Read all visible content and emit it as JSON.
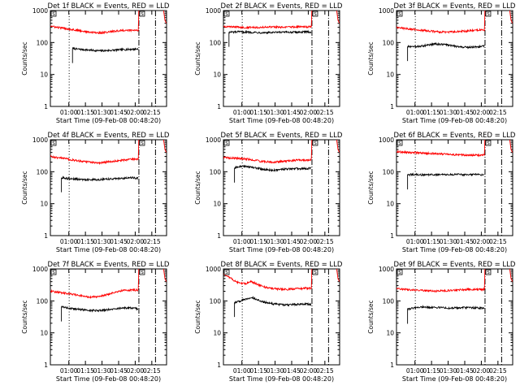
{
  "figure": {
    "start_time_label": "Start Time (09-Feb-08 00:48:20)",
    "yaxis_label": "Counts/sec",
    "colors": {
      "events": "#000000",
      "lld": "#ff0000",
      "axis": "#000000",
      "background": "#ffffff"
    }
  },
  "chart_data": [
    {
      "type": "line",
      "title": "Det 1f BLACK = Events, RED = LLD",
      "panel": "det-1f",
      "xlabel": "Start Time (09-Feb-08 00:48:20)",
      "ylabel": "Counts/sec",
      "x_ticks": [
        "01:00",
        "01:15",
        "01:30",
        "01:45",
        "02:00",
        "02:15"
      ],
      "x_tick_minutes": [
        11.67,
        26.67,
        41.67,
        56.67,
        71.67,
        86.67
      ],
      "x_range_minutes": [
        -5,
        100
      ],
      "yscale": "log",
      "ylim": [
        1,
        1000
      ],
      "y_ticks": [
        "1",
        "10",
        "100",
        "1000"
      ],
      "dotted_marker_minute": 12,
      "dashdot_marker_minutes": [
        75,
        90
      ],
      "flag_label": "S",
      "series": [
        {
          "name": "Events",
          "color": "#000000",
          "x": [
            15,
            20,
            30,
            40,
            50,
            60,
            70,
            74.5
          ],
          "y": [
            65,
            62,
            58,
            55,
            57,
            60,
            62,
            63
          ]
        },
        {
          "name": "LLD",
          "color": "#ff0000",
          "x": [
            -5,
            0,
            10,
            20,
            30,
            40,
            50,
            60,
            70,
            74.5
          ],
          "y": [
            330,
            300,
            270,
            240,
            210,
            200,
            220,
            240,
            240,
            240
          ]
        }
      ]
    },
    {
      "type": "line",
      "title": "Det 2f BLACK = Events, RED = LLD",
      "panel": "det-2f",
      "xlabel": "Start Time (09-Feb-08 00:48:20)",
      "ylabel": "Counts/sec",
      "x_ticks": [
        "01:00",
        "01:15",
        "01:30",
        "01:45",
        "02:00",
        "02:15"
      ],
      "x_tick_minutes": [
        11.67,
        26.67,
        41.67,
        56.67,
        71.67,
        86.67
      ],
      "x_range_minutes": [
        -5,
        100
      ],
      "yscale": "log",
      "ylim": [
        1,
        1000
      ],
      "y_ticks": [
        "1",
        "10",
        "100",
        "1000"
      ],
      "dotted_marker_minute": 12,
      "dashdot_marker_minutes": [
        75,
        90
      ],
      "flag_label": "S",
      "series": [
        {
          "name": "Events",
          "color": "#000000",
          "x": [
            0,
            10,
            20,
            30,
            40,
            50,
            60,
            70,
            74.5
          ],
          "y": [
            210,
            215,
            210,
            205,
            205,
            210,
            210,
            215,
            215
          ]
        },
        {
          "name": "LLD",
          "color": "#ff0000",
          "x": [
            -5,
            0,
            10,
            20,
            30,
            40,
            50,
            60,
            70,
            74.5
          ],
          "y": [
            320,
            310,
            300,
            300,
            300,
            305,
            300,
            310,
            310,
            310
          ]
        }
      ]
    },
    {
      "type": "line",
      "title": "Det 3f BLACK = Events, RED = LLD",
      "panel": "det-3f",
      "xlabel": "Start Time (09-Feb-08 00:48:20)",
      "ylabel": "Counts/sec",
      "x_ticks": [
        "01:00",
        "01:15",
        "01:30",
        "01:45",
        "02:00",
        "02:15"
      ],
      "x_tick_minutes": [
        11.67,
        26.67,
        41.67,
        56.67,
        71.67,
        86.67
      ],
      "x_range_minutes": [
        -5,
        100
      ],
      "yscale": "log",
      "ylim": [
        1,
        1000
      ],
      "y_ticks": [
        "1",
        "10",
        "100",
        "1000"
      ],
      "dotted_marker_minute": 12,
      "dashdot_marker_minutes": [
        75,
        90
      ],
      "flag_label": "S",
      "series": [
        {
          "name": "Events",
          "color": "#000000",
          "x": [
            5,
            10,
            20,
            30,
            40,
            50,
            60,
            70,
            74.5
          ],
          "y": [
            75,
            72,
            80,
            90,
            85,
            75,
            70,
            75,
            80
          ]
        },
        {
          "name": "LLD",
          "color": "#ff0000",
          "x": [
            -5,
            0,
            10,
            20,
            30,
            40,
            50,
            60,
            70,
            74.5
          ],
          "y": [
            300,
            280,
            260,
            240,
            220,
            210,
            220,
            230,
            250,
            250
          ]
        }
      ]
    },
    {
      "type": "line",
      "title": "Det 4f BLACK = Events, RED = LLD",
      "panel": "det-4f",
      "xlabel": "Start Time (09-Feb-08 00:48:20)",
      "ylabel": "Counts/sec",
      "x_ticks": [
        "01:00",
        "01:15",
        "01:30",
        "01:45",
        "02:00",
        "02:15"
      ],
      "x_tick_minutes": [
        11.67,
        26.67,
        41.67,
        56.67,
        71.67,
        86.67
      ],
      "x_range_minutes": [
        -5,
        100
      ],
      "yscale": "log",
      "ylim": [
        1,
        1000
      ],
      "y_ticks": [
        "1",
        "10",
        "100",
        "1000"
      ],
      "dotted_marker_minute": 12,
      "dashdot_marker_minutes": [
        75,
        90
      ],
      "flag_label": "S",
      "series": [
        {
          "name": "Events",
          "color": "#000000",
          "x": [
            5,
            10,
            20,
            30,
            40,
            50,
            60,
            70,
            74.5
          ],
          "y": [
            65,
            62,
            58,
            56,
            57,
            60,
            62,
            65,
            62
          ]
        },
        {
          "name": "LLD",
          "color": "#ff0000",
          "x": [
            -5,
            0,
            10,
            20,
            30,
            40,
            50,
            60,
            70,
            74.5
          ],
          "y": [
            300,
            280,
            250,
            220,
            200,
            190,
            210,
            230,
            250,
            240
          ]
        }
      ]
    },
    {
      "type": "line",
      "title": "Det 5f BLACK = Events, RED = LLD",
      "panel": "det-5f",
      "xlabel": "Start Time (09-Feb-08 00:48:20)",
      "ylabel": "Counts/sec",
      "x_ticks": [
        "01:00",
        "01:15",
        "01:30",
        "01:45",
        "02:00",
        "02:15"
      ],
      "x_tick_minutes": [
        11.67,
        26.67,
        41.67,
        56.67,
        71.67,
        86.67
      ],
      "x_range_minutes": [
        -5,
        100
      ],
      "yscale": "log",
      "ylim": [
        1,
        1000
      ],
      "y_ticks": [
        "1",
        "10",
        "100",
        "1000"
      ],
      "dotted_marker_minute": 12,
      "dashdot_marker_minutes": [
        75,
        90
      ],
      "flag_label": "S",
      "series": [
        {
          "name": "Events",
          "color": "#000000",
          "x": [
            5,
            10,
            20,
            30,
            40,
            50,
            60,
            70,
            74.5
          ],
          "y": [
            130,
            150,
            140,
            120,
            110,
            120,
            125,
            125,
            130
          ]
        },
        {
          "name": "LLD",
          "color": "#ff0000",
          "x": [
            -5,
            0,
            10,
            20,
            30,
            40,
            50,
            60,
            70,
            74.5
          ],
          "y": [
            280,
            270,
            260,
            240,
            210,
            200,
            210,
            230,
            230,
            240
          ]
        }
      ]
    },
    {
      "type": "line",
      "title": "Det 6f BLACK = Events, RED = LLD",
      "panel": "det-6f",
      "xlabel": "Start Time (09-Feb-08 00:48:20)",
      "ylabel": "Counts/sec",
      "x_ticks": [
        "01:00",
        "01:15",
        "01:30",
        "01:45",
        "02:00",
        "02:15"
      ],
      "x_tick_minutes": [
        11.67,
        26.67,
        41.67,
        56.67,
        71.67,
        86.67
      ],
      "x_range_minutes": [
        -5,
        100
      ],
      "yscale": "log",
      "ylim": [
        1,
        1000
      ],
      "y_ticks": [
        "1",
        "10",
        "100",
        "1000"
      ],
      "dotted_marker_minute": 12,
      "dashdot_marker_minutes": [
        75,
        90
      ],
      "flag_label": "S",
      "series": [
        {
          "name": "Events",
          "color": "#000000",
          "x": [
            5,
            10,
            20,
            30,
            40,
            50,
            60,
            70,
            74.5
          ],
          "y": [
            80,
            82,
            80,
            80,
            80,
            82,
            80,
            82,
            80
          ]
        },
        {
          "name": "LLD",
          "color": "#ff0000",
          "x": [
            -5,
            0,
            10,
            20,
            30,
            40,
            50,
            60,
            70,
            74.5
          ],
          "y": [
            430,
            410,
            400,
            380,
            370,
            350,
            340,
            330,
            330,
            340
          ]
        }
      ]
    },
    {
      "type": "line",
      "title": "Det 7f BLACK = Events, RED = LLD",
      "panel": "det-7f",
      "xlabel": "Start Time (09-Feb-08 00:48:20)",
      "ylabel": "Counts/sec",
      "x_ticks": [
        "01:00",
        "01:15",
        "01:30",
        "01:45",
        "02:00",
        "02:15"
      ],
      "x_tick_minutes": [
        11.67,
        26.67,
        41.67,
        56.67,
        71.67,
        86.67
      ],
      "x_range_minutes": [
        -5,
        100
      ],
      "yscale": "log",
      "ylim": [
        1,
        1000
      ],
      "y_ticks": [
        "1",
        "10",
        "100",
        "1000"
      ],
      "dotted_marker_minute": 12,
      "dashdot_marker_minutes": [
        75,
        90
      ],
      "flag_label": "S",
      "series": [
        {
          "name": "Events",
          "color": "#000000",
          "x": [
            5,
            10,
            20,
            30,
            40,
            50,
            60,
            70,
            74.5
          ],
          "y": [
            65,
            60,
            55,
            50,
            50,
            55,
            60,
            60,
            55
          ]
        },
        {
          "name": "LLD",
          "color": "#ff0000",
          "x": [
            -5,
            0,
            10,
            20,
            30,
            40,
            50,
            60,
            70,
            74.5
          ],
          "y": [
            200,
            190,
            170,
            150,
            130,
            140,
            170,
            210,
            220,
            220
          ]
        }
      ]
    },
    {
      "type": "line",
      "title": "Det 8f BLACK = Events, RED = LLD",
      "panel": "det-8f",
      "xlabel": "Start Time (09-Feb-08 00:48:20)",
      "ylabel": "Counts/sec",
      "x_ticks": [
        "01:00",
        "01:15",
        "01:30",
        "01:45",
        "02:00",
        "02:15"
      ],
      "x_tick_minutes": [
        11.67,
        26.67,
        41.67,
        56.67,
        71.67,
        86.67
      ],
      "x_range_minutes": [
        -5,
        100
      ],
      "yscale": "log",
      "ylim": [
        1,
        1000
      ],
      "y_ticks": [
        "1",
        "10",
        "100",
        "1000"
      ],
      "dotted_marker_minute": 12,
      "dashdot_marker_minutes": [
        75,
        90
      ],
      "flag_label": "S",
      "series": [
        {
          "name": "Events",
          "color": "#000000",
          "x": [
            5,
            10,
            15,
            20,
            30,
            40,
            50,
            60,
            70,
            74.5
          ],
          "y": [
            90,
            100,
            110,
            130,
            95,
            80,
            75,
            78,
            80,
            75
          ]
        },
        {
          "name": "LLD",
          "color": "#ff0000",
          "x": [
            -5,
            0,
            5,
            10,
            15,
            20,
            30,
            40,
            50,
            60,
            70,
            74.5
          ],
          "y": [
            700,
            550,
            420,
            360,
            350,
            400,
            280,
            240,
            230,
            240,
            250,
            250
          ]
        }
      ]
    },
    {
      "type": "line",
      "title": "Det 9f BLACK = Events, RED = LLD",
      "panel": "det-9f",
      "xlabel": "Start Time (09-Feb-08 00:48:20)",
      "ylabel": "Counts/sec",
      "x_ticks": [
        "01:00",
        "01:15",
        "01:30",
        "01:45",
        "02:00",
        "02:15"
      ],
      "x_tick_minutes": [
        11.67,
        26.67,
        41.67,
        56.67,
        71.67,
        86.67
      ],
      "x_range_minutes": [
        -5,
        100
      ],
      "yscale": "log",
      "ylim": [
        1,
        1000
      ],
      "y_ticks": [
        "1",
        "10",
        "100",
        "1000"
      ],
      "dotted_marker_minute": 12,
      "dashdot_marker_minutes": [
        75,
        90
      ],
      "flag_label": "S",
      "series": [
        {
          "name": "Events",
          "color": "#000000",
          "x": [
            5,
            10,
            20,
            30,
            40,
            50,
            60,
            70,
            74.5
          ],
          "y": [
            55,
            60,
            65,
            62,
            60,
            60,
            62,
            60,
            60
          ]
        },
        {
          "name": "LLD",
          "color": "#ff0000",
          "x": [
            -5,
            0,
            10,
            20,
            30,
            40,
            50,
            60,
            70,
            74.5
          ],
          "y": [
            240,
            230,
            220,
            210,
            200,
            210,
            220,
            230,
            230,
            230
          ]
        }
      ]
    }
  ]
}
